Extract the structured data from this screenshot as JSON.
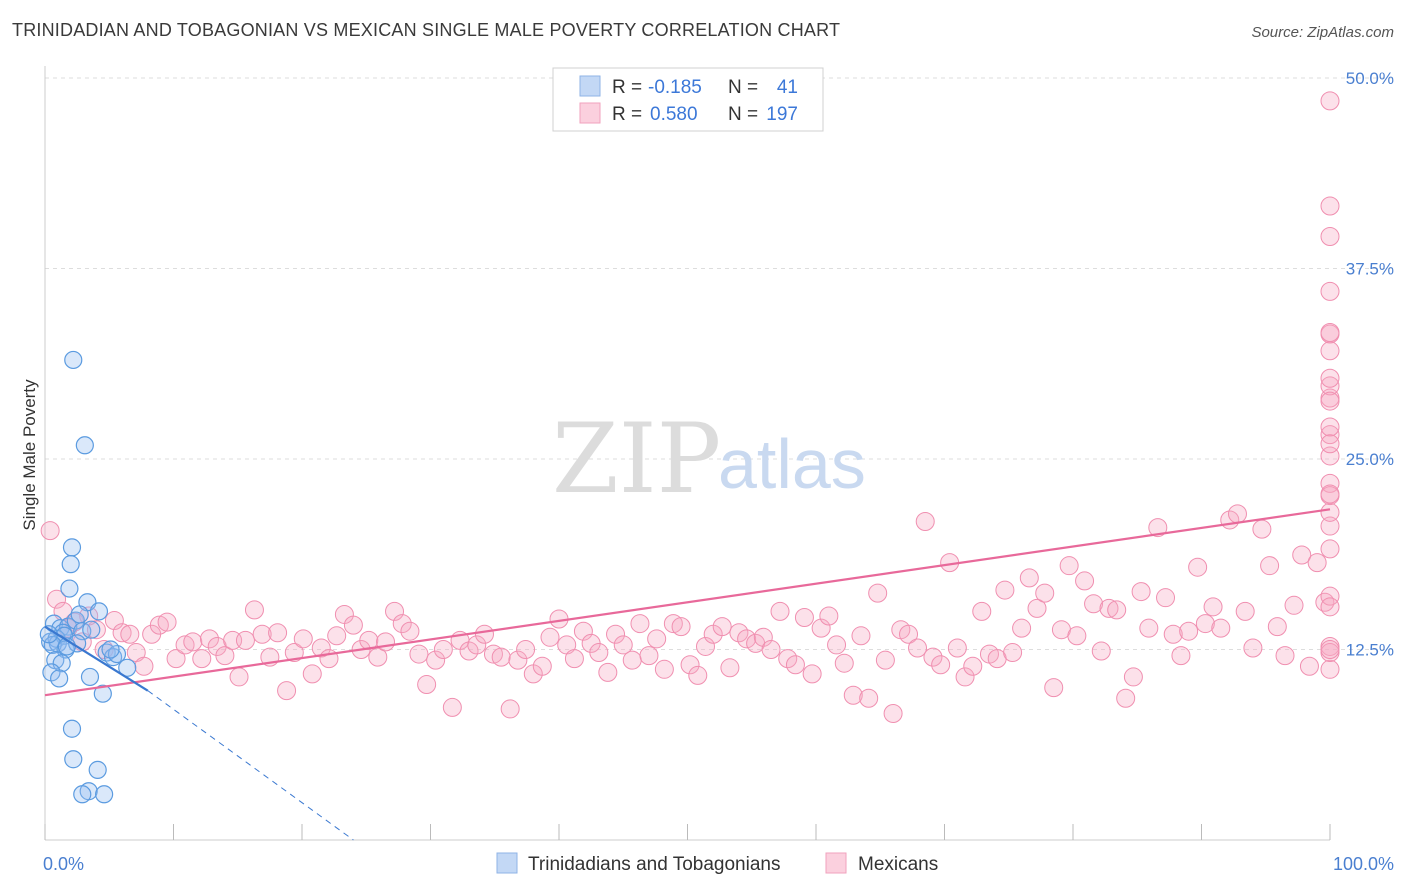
{
  "header": {
    "title": "TRINIDADIAN AND TOBAGONIAN VS MEXICAN SINGLE MALE POVERTY CORRELATION CHART",
    "source": "Source: ZipAtlas.com"
  },
  "watermark": {
    "zip": "ZIP",
    "atlas": "atlas"
  },
  "legend": {
    "rows": [
      {
        "r_label": "R =",
        "r_value": "-0.185",
        "n_label": "N =",
        "n_value": "41",
        "color": "#a9c8f0"
      },
      {
        "r_label": "R =",
        "r_value": "0.580",
        "n_label": "N =",
        "n_value": "197",
        "color": "#f5b8cb"
      }
    ]
  },
  "bottom_legend": {
    "items": [
      {
        "label": "Trinidadians and Tobagonians",
        "color": "#a9c8f0"
      },
      {
        "label": "Mexicans",
        "color": "#f5b8cb"
      }
    ]
  },
  "chart_data": {
    "type": "scatter",
    "title": "TRINIDADIAN AND TOBAGONIAN VS MEXICAN SINGLE MALE POVERTY CORRELATION CHART",
    "xlabel": "",
    "ylabel": "Single Male Poverty",
    "xlim": [
      0,
      100
    ],
    "ylim": [
      0,
      50
    ],
    "x_tick_labels": [
      "0.0%",
      "100.0%"
    ],
    "y_ticks": [
      12.5,
      25.0,
      37.5,
      50.0
    ],
    "y_tick_labels": [
      "12.5%",
      "25.0%",
      "37.5%",
      "50.0%"
    ],
    "grid": "horizontal dashed",
    "legend_position": "top-center",
    "colors": {
      "blue": "#5b9be0",
      "blue_line": "#3a78d0",
      "pink": "#f08fb0",
      "pink_line": "#e8699a"
    },
    "series": [
      {
        "name": "Trinidadians and Tobagonians",
        "trend": {
          "x": [
            0,
            8
          ],
          "y": [
            14.0,
            9.8
          ],
          "dashed_to": [
            24,
            0
          ]
        },
        "points": [
          [
            2.2,
            31.5
          ],
          [
            3.1,
            25.9
          ],
          [
            2.1,
            19.2
          ],
          [
            2.0,
            18.1
          ],
          [
            1.9,
            16.5
          ],
          [
            0.7,
            14.2
          ],
          [
            1.2,
            13.9
          ],
          [
            1.8,
            14.0
          ],
          [
            2.4,
            14.4
          ],
          [
            3.3,
            15.6
          ],
          [
            4.2,
            15.0
          ],
          [
            2.7,
            14.8
          ],
          [
            1.4,
            13.6
          ],
          [
            0.4,
            13.0
          ],
          [
            0.9,
            13.2
          ],
          [
            1.5,
            13.4
          ],
          [
            2.9,
            13.7
          ],
          [
            3.6,
            13.8
          ],
          [
            1.0,
            12.9
          ],
          [
            0.6,
            12.8
          ],
          [
            1.6,
            12.5
          ],
          [
            2.5,
            12.9
          ],
          [
            4.8,
            12.3
          ],
          [
            5.3,
            12.0
          ],
          [
            5.6,
            12.2
          ],
          [
            0.8,
            11.8
          ],
          [
            1.3,
            11.6
          ],
          [
            6.4,
            11.3
          ],
          [
            0.5,
            11.0
          ],
          [
            1.1,
            10.6
          ],
          [
            3.5,
            10.7
          ],
          [
            4.5,
            9.6
          ],
          [
            2.1,
            7.3
          ],
          [
            2.2,
            5.3
          ],
          [
            4.1,
            4.6
          ],
          [
            3.4,
            3.2
          ],
          [
            2.9,
            3.0
          ],
          [
            4.6,
            3.0
          ],
          [
            0.3,
            13.5
          ],
          [
            1.7,
            12.7
          ],
          [
            5.1,
            12.5
          ]
        ]
      },
      {
        "name": "Mexicans",
        "trend": {
          "x": [
            0,
            100
          ],
          "y": [
            9.5,
            21.7
          ]
        },
        "points": [
          [
            0.4,
            20.3
          ],
          [
            0.9,
            15.8
          ],
          [
            1.4,
            15.0
          ],
          [
            1.8,
            13.9
          ],
          [
            2.3,
            14.3
          ],
          [
            2.9,
            13.0
          ],
          [
            3.4,
            14.7
          ],
          [
            4.0,
            13.8
          ],
          [
            4.6,
            12.5
          ],
          [
            5.4,
            14.4
          ],
          [
            6.0,
            13.6
          ],
          [
            6.6,
            13.5
          ],
          [
            7.1,
            12.3
          ],
          [
            7.7,
            11.4
          ],
          [
            8.3,
            13.5
          ],
          [
            8.9,
            14.1
          ],
          [
            9.5,
            14.3
          ],
          [
            10.2,
            11.9
          ],
          [
            10.9,
            12.8
          ],
          [
            11.5,
            13.0
          ],
          [
            12.2,
            11.9
          ],
          [
            12.8,
            13.2
          ],
          [
            13.4,
            12.7
          ],
          [
            14.0,
            12.1
          ],
          [
            14.6,
            13.1
          ],
          [
            15.1,
            10.7
          ],
          [
            15.6,
            13.1
          ],
          [
            16.3,
            15.1
          ],
          [
            16.9,
            13.5
          ],
          [
            17.5,
            12.0
          ],
          [
            18.1,
            13.6
          ],
          [
            18.8,
            9.8
          ],
          [
            19.4,
            12.3
          ],
          [
            20.1,
            13.2
          ],
          [
            20.8,
            10.9
          ],
          [
            21.5,
            12.6
          ],
          [
            22.1,
            11.9
          ],
          [
            22.7,
            13.4
          ],
          [
            23.3,
            14.8
          ],
          [
            24.0,
            14.1
          ],
          [
            24.6,
            12.5
          ],
          [
            25.2,
            13.1
          ],
          [
            25.9,
            12.0
          ],
          [
            26.5,
            13.0
          ],
          [
            27.2,
            15.0
          ],
          [
            27.8,
            14.2
          ],
          [
            28.4,
            13.7
          ],
          [
            29.1,
            12.2
          ],
          [
            29.7,
            10.2
          ],
          [
            30.4,
            11.8
          ],
          [
            31.0,
            12.5
          ],
          [
            31.7,
            8.7
          ],
          [
            32.3,
            13.1
          ],
          [
            33.0,
            12.4
          ],
          [
            33.6,
            12.8
          ],
          [
            34.2,
            13.5
          ],
          [
            34.9,
            12.2
          ],
          [
            35.5,
            12.0
          ],
          [
            36.2,
            8.6
          ],
          [
            36.8,
            11.8
          ],
          [
            37.4,
            12.5
          ],
          [
            38.0,
            10.9
          ],
          [
            38.7,
            11.4
          ],
          [
            39.3,
            13.3
          ],
          [
            40.0,
            14.5
          ],
          [
            40.6,
            12.8
          ],
          [
            41.2,
            11.9
          ],
          [
            41.9,
            13.7
          ],
          [
            42.5,
            12.9
          ],
          [
            43.1,
            12.3
          ],
          [
            43.8,
            11.0
          ],
          [
            44.4,
            13.5
          ],
          [
            45.0,
            12.8
          ],
          [
            45.7,
            11.8
          ],
          [
            46.3,
            14.2
          ],
          [
            47.0,
            12.1
          ],
          [
            47.6,
            13.2
          ],
          [
            48.2,
            11.2
          ],
          [
            48.9,
            14.2
          ],
          [
            49.5,
            14.0
          ],
          [
            50.2,
            11.5
          ],
          [
            50.8,
            10.8
          ],
          [
            51.4,
            12.7
          ],
          [
            52.0,
            13.5
          ],
          [
            52.7,
            14.0
          ],
          [
            53.3,
            11.3
          ],
          [
            54.0,
            13.6
          ],
          [
            54.6,
            13.2
          ],
          [
            55.3,
            12.9
          ],
          [
            55.9,
            13.3
          ],
          [
            56.5,
            12.5
          ],
          [
            57.2,
            15.0
          ],
          [
            57.8,
            11.9
          ],
          [
            58.4,
            11.5
          ],
          [
            59.1,
            14.6
          ],
          [
            59.7,
            10.9
          ],
          [
            60.4,
            13.9
          ],
          [
            61.0,
            14.7
          ],
          [
            61.6,
            12.8
          ],
          [
            62.2,
            11.6
          ],
          [
            62.9,
            9.5
          ],
          [
            63.5,
            13.4
          ],
          [
            64.1,
            9.3
          ],
          [
            64.8,
            16.2
          ],
          [
            65.4,
            11.8
          ],
          [
            66.0,
            8.3
          ],
          [
            66.6,
            13.8
          ],
          [
            67.2,
            13.5
          ],
          [
            67.9,
            12.6
          ],
          [
            68.5,
            20.9
          ],
          [
            69.1,
            12.0
          ],
          [
            69.7,
            11.5
          ],
          [
            70.4,
            18.2
          ],
          [
            71.0,
            12.6
          ],
          [
            71.6,
            10.7
          ],
          [
            72.2,
            11.4
          ],
          [
            72.9,
            15.0
          ],
          [
            73.5,
            12.2
          ],
          [
            74.1,
            11.9
          ],
          [
            74.7,
            16.4
          ],
          [
            75.3,
            12.3
          ],
          [
            76.0,
            13.9
          ],
          [
            76.6,
            17.2
          ],
          [
            77.2,
            15.2
          ],
          [
            77.8,
            16.2
          ],
          [
            78.5,
            10.0
          ],
          [
            79.1,
            13.8
          ],
          [
            79.7,
            18.0
          ],
          [
            80.3,
            13.4
          ],
          [
            80.9,
            17.0
          ],
          [
            81.6,
            15.5
          ],
          [
            82.2,
            12.4
          ],
          [
            82.8,
            15.2
          ],
          [
            83.4,
            15.1
          ],
          [
            84.1,
            9.3
          ],
          [
            84.7,
            10.7
          ],
          [
            85.3,
            16.3
          ],
          [
            85.9,
            13.9
          ],
          [
            86.6,
            20.5
          ],
          [
            87.2,
            15.9
          ],
          [
            87.8,
            13.5
          ],
          [
            88.4,
            12.1
          ],
          [
            89.0,
            13.7
          ],
          [
            89.7,
            17.9
          ],
          [
            90.3,
            14.2
          ],
          [
            90.9,
            15.3
          ],
          [
            91.5,
            13.9
          ],
          [
            92.2,
            21.0
          ],
          [
            92.8,
            21.4
          ],
          [
            93.4,
            15.0
          ],
          [
            94.0,
            12.6
          ],
          [
            94.7,
            20.4
          ],
          [
            95.3,
            18.0
          ],
          [
            95.9,
            14.0
          ],
          [
            96.5,
            12.1
          ],
          [
            97.2,
            15.4
          ],
          [
            97.8,
            18.7
          ],
          [
            98.4,
            11.4
          ],
          [
            99.0,
            18.2
          ],
          [
            99.6,
            15.6
          ],
          [
            100.0,
            16.0
          ],
          [
            100.0,
            12.7
          ],
          [
            100.0,
            11.2
          ],
          [
            100.0,
            19.1
          ],
          [
            100.0,
            20.6
          ],
          [
            100.0,
            21.5
          ],
          [
            100.0,
            26.6
          ],
          [
            100.0,
            23.4
          ],
          [
            100.0,
            22.6
          ],
          [
            100.0,
            33.2
          ],
          [
            100.0,
            27.1
          ],
          [
            100.0,
            25.2
          ],
          [
            100.0,
            26.0
          ],
          [
            100.0,
            32.1
          ],
          [
            100.0,
            29.0
          ],
          [
            100.0,
            29.8
          ],
          [
            100.0,
            15.3
          ],
          [
            100.0,
            12.3
          ],
          [
            100.0,
            12.5
          ],
          [
            100.0,
            28.8
          ],
          [
            100.0,
            30.3
          ],
          [
            100.0,
            39.6
          ],
          [
            100.0,
            36.0
          ],
          [
            100.0,
            41.6
          ],
          [
            100.0,
            33.3
          ],
          [
            100.0,
            48.5
          ],
          [
            100.0,
            22.7
          ]
        ]
      }
    ]
  }
}
